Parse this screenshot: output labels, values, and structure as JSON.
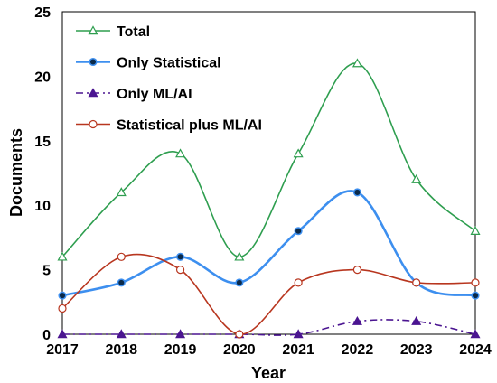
{
  "chart_data": {
    "type": "line",
    "xlabel": "Year",
    "ylabel": "Documents",
    "categories": [
      "2017",
      "2018",
      "2019",
      "2020",
      "2021",
      "2022",
      "2023",
      "2024"
    ],
    "yticks": [
      "0",
      "5",
      "10",
      "15",
      "20",
      "25"
    ],
    "ylim": [
      0,
      25
    ],
    "grid": false,
    "legend_position": "top-left",
    "smooth": true,
    "series": [
      {
        "name": "Total",
        "values": [
          6,
          11,
          14,
          6,
          14,
          21,
          12,
          8
        ],
        "color": "#2e9e4f",
        "marker": "triangle-open",
        "dash": "solid"
      },
      {
        "name": "Only Statistical",
        "values": [
          3,
          4,
          6,
          4,
          8,
          11,
          4,
          3
        ],
        "color": "#3d8fef",
        "marker": "circle-filled-dark",
        "dash": "solid"
      },
      {
        "name": "Only ML/AI",
        "values": [
          0,
          0,
          0,
          0,
          0,
          1,
          1,
          0
        ],
        "color": "#4b1591",
        "marker": "triangle-filled",
        "dash": "dashdot"
      },
      {
        "name": "Statistical plus ML/AI",
        "values": [
          2,
          6,
          5,
          0,
          4,
          5,
          4,
          4
        ],
        "color": "#b8361f",
        "marker": "circle-open",
        "dash": "solid"
      }
    ]
  }
}
